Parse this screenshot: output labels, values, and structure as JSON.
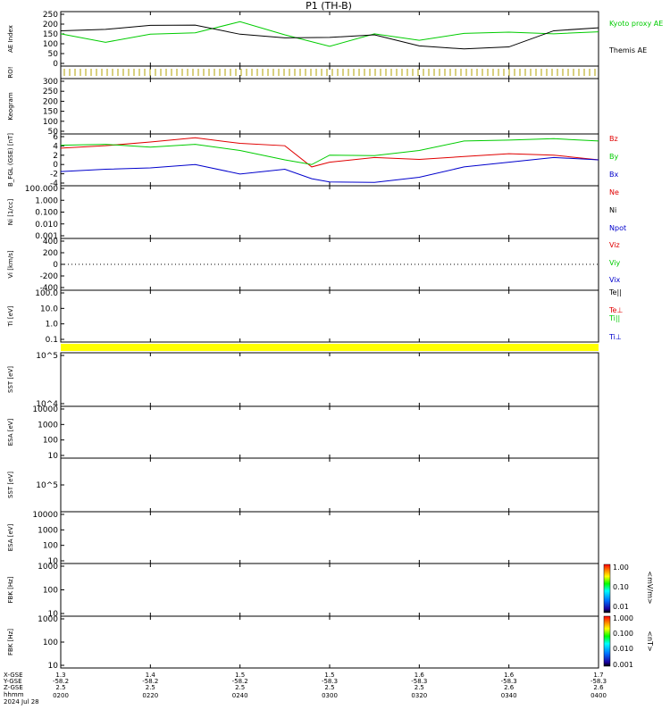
{
  "title": "P1 (TH-B)",
  "date_label": "2024 Jul 28",
  "x_row_labels": [
    "X-GSE",
    "Y-GSE",
    "Z-GSE",
    "hhmm"
  ],
  "x_ticks": [
    {
      "hhmm": "0200",
      "x": "1.3",
      "y": "-58.2",
      "z": "2.5"
    },
    {
      "hhmm": "0220",
      "x": "1.4",
      "y": "-58.2",
      "z": "2.5"
    },
    {
      "hhmm": "0240",
      "x": "1.5",
      "y": "-58.2",
      "z": "2.5"
    },
    {
      "hhmm": "0300",
      "x": "1.5",
      "y": "-58.3",
      "z": "2.5"
    },
    {
      "hhmm": "0320",
      "x": "1.6",
      "y": "-58.3",
      "z": "2.5"
    },
    {
      "hhmm": "0340",
      "x": "1.6",
      "y": "-58.3",
      "z": "2.6"
    },
    {
      "hhmm": "0400",
      "x": "1.7",
      "y": "-58.3",
      "z": "2.6"
    }
  ],
  "colors": {
    "red": "#e00000",
    "green": "#00cc00",
    "blue": "#0000cc",
    "black": "#000000",
    "yellow": "#ffff00"
  },
  "colorbar1": {
    "ticks": [
      "1.00",
      "0.10",
      "0.01"
    ],
    "label": "<mV/m>"
  },
  "colorbar2": {
    "ticks": [
      "1.000",
      "0.100",
      "0.010",
      "0.001"
    ],
    "label": "<nT>"
  },
  "chart_data": [
    {
      "type": "line",
      "ylabel": "AE Index",
      "ylim": [
        -10,
        260
      ],
      "yticks": [
        "250",
        "200",
        "150",
        "100",
        "50",
        "0"
      ],
      "legend": [
        "Kyoto proxy AE",
        "Themis AE"
      ],
      "series": [
        {
          "name": "Kyoto proxy AE",
          "color": "#00cc00",
          "x": [
            0,
            10,
            20,
            30,
            40,
            50,
            60,
            70,
            80,
            90,
            100,
            110,
            120
          ],
          "y": [
            150,
            108,
            148,
            155,
            210,
            145,
            88,
            150,
            118,
            152,
            158,
            150,
            160
          ]
        },
        {
          "name": "Themis AE",
          "color": "#000000",
          "x": [
            0,
            10,
            20,
            30,
            40,
            50,
            60,
            70,
            80,
            90,
            100,
            110,
            120
          ],
          "y": [
            165,
            172,
            192,
            193,
            148,
            130,
            132,
            145,
            90,
            75,
            85,
            165,
            180
          ]
        }
      ]
    },
    {
      "type": "line",
      "ylabel": "RO!",
      "note": "dotted marker row"
    },
    {
      "type": "line",
      "ylabel": "Keogram",
      "ylim": [
        50,
        300
      ],
      "yticks": [
        "300",
        "250",
        "200",
        "150",
        "100",
        "50"
      ]
    },
    {
      "type": "line",
      "ylabel": "B_FGL (GSE) [nT]",
      "ylim": [
        -5,
        6
      ],
      "yticks": [
        "6",
        "4",
        "2",
        "0",
        "-2",
        "-4"
      ],
      "legend": [
        "Bz",
        "By",
        "Bx"
      ],
      "series": [
        {
          "name": "Bz",
          "color": "#e00000",
          "x": [
            0,
            10,
            20,
            30,
            40,
            50,
            56,
            60,
            70,
            80,
            90,
            100,
            110,
            120
          ],
          "y": [
            3,
            3.5,
            4.3,
            5.2,
            4,
            3.5,
            -1,
            0,
            1,
            0.6,
            1.2,
            1.8,
            1.5,
            0.5
          ]
        },
        {
          "name": "By",
          "color": "#00cc00",
          "x": [
            0,
            10,
            20,
            30,
            40,
            50,
            56,
            60,
            70,
            80,
            90,
            100,
            110,
            120
          ],
          "y": [
            3.6,
            3.8,
            3.2,
            3.8,
            2.5,
            0.5,
            -0.5,
            1.5,
            1.4,
            2.5,
            4.5,
            4.7,
            5,
            4.5
          ]
        },
        {
          "name": "Bx",
          "color": "#0000cc",
          "x": [
            0,
            10,
            20,
            30,
            40,
            50,
            56,
            60,
            70,
            80,
            90,
            100,
            110,
            120
          ],
          "y": [
            -2,
            -1.5,
            -1.2,
            -0.5,
            -2.5,
            -1.5,
            -3.5,
            -4.2,
            -4.3,
            -3.2,
            -1,
            0,
            1,
            0.5
          ]
        }
      ]
    },
    {
      "type": "line",
      "ylabel": "Ni [1/cc]",
      "ylim": [
        0.001,
        100
      ],
      "yticks": [
        "100.000",
        "1.000",
        "0.100",
        "0.010",
        "0.001"
      ],
      "legend": [
        "Ne",
        "Ni",
        "Npot"
      ]
    },
    {
      "type": "line",
      "ylabel": "Vi [km/s]",
      "ylim": [
        -400,
        400
      ],
      "yticks": [
        "400",
        "200",
        "0",
        "-200",
        "-400"
      ],
      "legend": [
        "Viz",
        "Viy",
        "Vix"
      ]
    },
    {
      "type": "line",
      "ylabel": "Ti [eV]",
      "ylim": [
        0.1,
        1000
      ],
      "yticks": [
        "100.0",
        "10.0",
        "1.0",
        "0.1"
      ],
      "legend": [
        "Te||",
        "Te⊥",
        "Ti||",
        "Ti⊥"
      ]
    },
    {
      "type": "heatmap",
      "ylabel": "SST [eV]",
      "yticks": [
        "10^5",
        "10^4"
      ]
    },
    {
      "type": "heatmap",
      "ylabel": "ESA [eV]",
      "yticks": [
        "10000",
        "1000",
        "100",
        "10"
      ]
    },
    {
      "type": "heatmap",
      "ylabel": "SST [eV]",
      "yticks": [
        "10^5"
      ]
    },
    {
      "type": "heatmap",
      "ylabel": "ESA [eV]",
      "yticks": [
        "10000",
        "1000",
        "100",
        "10"
      ]
    },
    {
      "type": "heatmap",
      "ylabel": "FBK [Hz]",
      "yticks": [
        "1000",
        "100",
        "10"
      ]
    },
    {
      "type": "heatmap",
      "ylabel": "FBK [Hz]",
      "yticks": [
        "1000",
        "100",
        "10"
      ]
    }
  ]
}
